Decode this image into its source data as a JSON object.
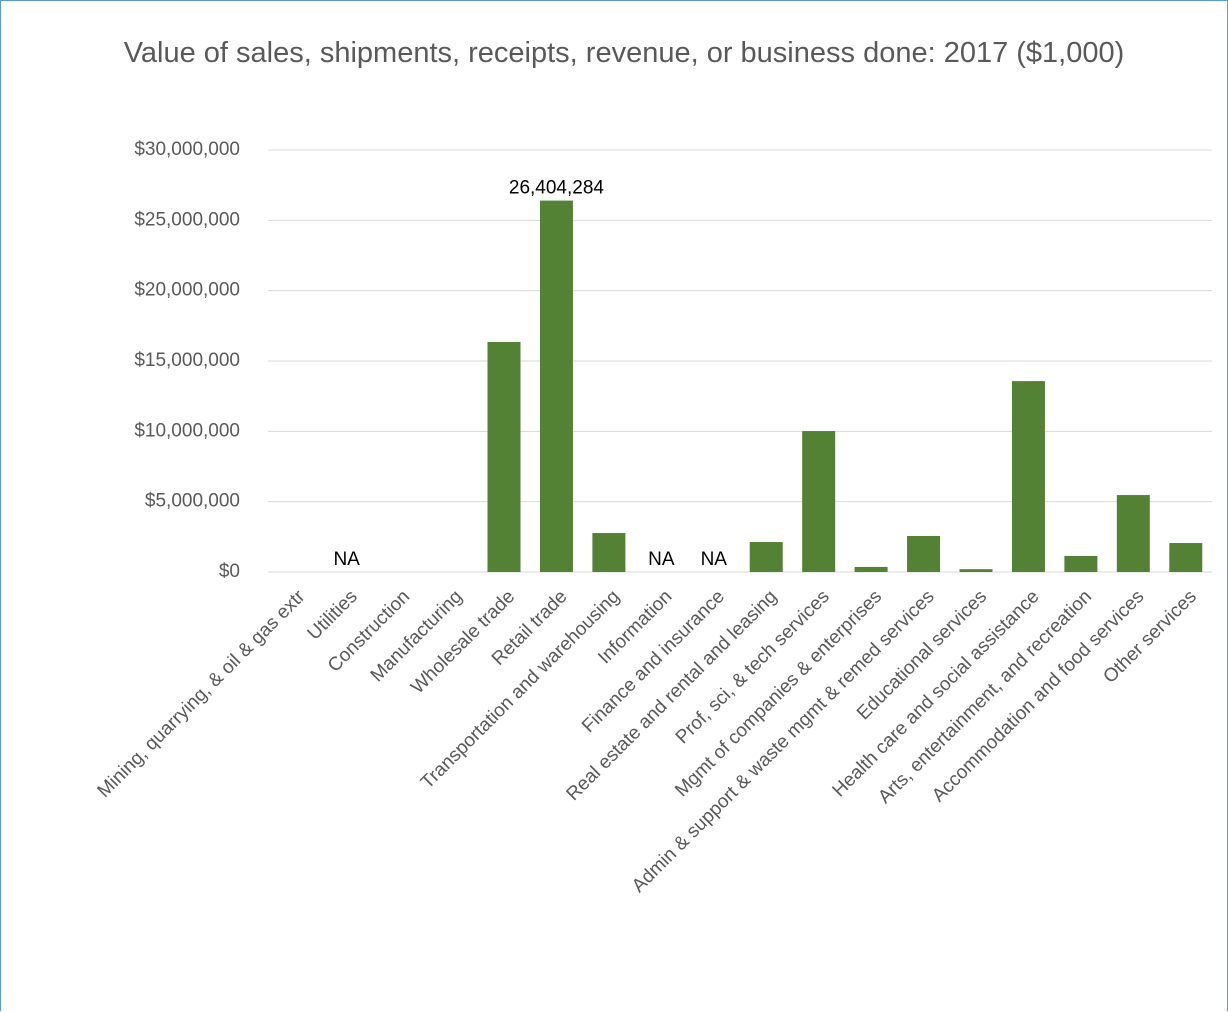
{
  "chart_data": {
    "type": "bar",
    "title": "Value of sales, shipments, receipts, revenue, or business done: 2017 ($1,000)",
    "categories": [
      "Mining, quarrying, & oil & gas extr",
      "Utilities",
      "Construction",
      "Manufacturing",
      "Wholesale trade",
      "Retail trade",
      "Transportation and warehousing",
      "Information",
      "Finance and insurance",
      "Real estate and rental and leasing",
      "Prof, sci, & tech services",
      "Mgmt of companies & enterprises",
      "Admin & support & waste mgmt & remed services",
      "Educational services",
      "Health care and social assistance",
      "Arts, entertainment, and recreation",
      "Accommodation and food services",
      "Other services"
    ],
    "values": [
      0,
      null,
      0,
      0,
      16350000,
      26404284,
      2770000,
      null,
      null,
      2130000,
      10020000,
      360000,
      2560000,
      200000,
      13570000,
      1140000,
      5470000,
      2060000
    ],
    "value_labels": [
      null,
      "NA",
      null,
      null,
      null,
      "26,404,284",
      null,
      "NA",
      "NA",
      null,
      null,
      null,
      null,
      null,
      null,
      null,
      null,
      null
    ],
    "color": "#548235",
    "ylim": [
      0,
      30000000
    ],
    "yticks": [
      {
        "value": 0,
        "label": "$0"
      },
      {
        "value": 5000000,
        "label": "$5,000,000"
      },
      {
        "value": 10000000,
        "label": "$10,000,000"
      },
      {
        "value": 15000000,
        "label": "$15,000,000"
      },
      {
        "value": 20000000,
        "label": "$20,000,000"
      },
      {
        "value": 25000000,
        "label": "$25,000,000"
      },
      {
        "value": 30000000,
        "label": "$30,000,000"
      }
    ],
    "grid": true
  }
}
